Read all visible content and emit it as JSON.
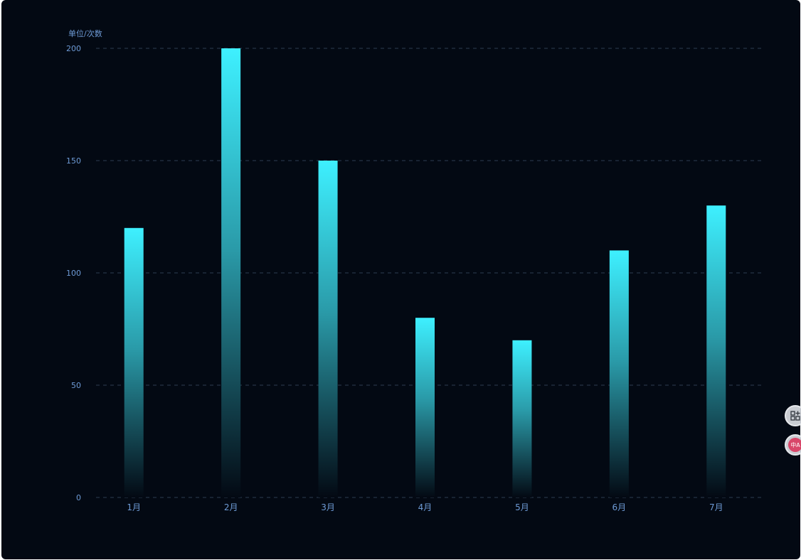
{
  "chart_data": {
    "type": "bar",
    "unit_label": "单位/次数",
    "categories": [
      "1月",
      "2月",
      "3月",
      "4月",
      "5月",
      "6月",
      "7月"
    ],
    "values": [
      120,
      200,
      150,
      80,
      70,
      110,
      130
    ],
    "ylim": [
      0,
      200
    ],
    "yticks": [
      0,
      50,
      100,
      150,
      200
    ],
    "grid": true,
    "gridline_style": "dashed",
    "legend": "none",
    "colors": {
      "background": "#030913",
      "bar_top": "#3ef0ff",
      "bar_bottom": "#030913",
      "axis_label": "#6e9bd6",
      "grid": "#2d3d52"
    }
  },
  "floating_buttons": {
    "apps_icon": "grid-plus-icon",
    "lang_icon": "translate-icon",
    "lang_text": "中A"
  }
}
